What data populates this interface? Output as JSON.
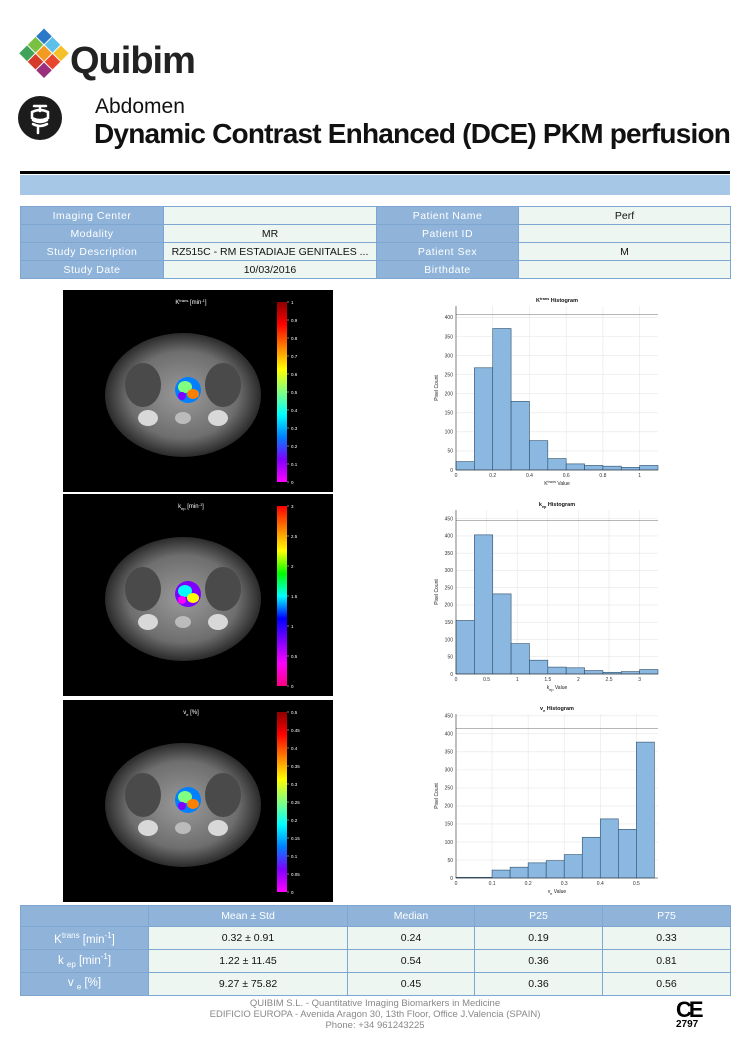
{
  "brand": {
    "name": "Quibim"
  },
  "report": {
    "category": "Abdomen",
    "title": "Dynamic Contrast Enhanced (DCE) PKM perfusion"
  },
  "info": {
    "rows": [
      {
        "l1": "Imaging Center",
        "v1": "",
        "l2": "Patient Name",
        "v2": "Perf"
      },
      {
        "l1": "Modality",
        "v1": "MR",
        "l2": "Patient ID",
        "v2": ""
      },
      {
        "l1": "Study Description",
        "v1": "RZ515C - RM ESTADIAJE GENITALES ...",
        "l2": "Patient Sex",
        "v2": "M"
      },
      {
        "l1": "Study Date",
        "v1": "10/03/2016",
        "l2": "Birthdate",
        "v2": ""
      }
    ]
  },
  "maps": [
    {
      "title_main": "K",
      "title_sup": "trans",
      "title_unit": " [min",
      "title_unit_sup": "-1",
      "title_end": "]",
      "scale": [
        "1",
        "0.9",
        "0.8",
        "0.7",
        "0.6",
        "0.5",
        "0.4",
        "0.3",
        "0.2",
        "0.1",
        "0"
      ],
      "colormap": "jet"
    },
    {
      "title_main": "k",
      "title_sub": "ep",
      "title_unit": " [min",
      "title_unit_sup": "-1",
      "title_end": "]",
      "scale": [
        "3",
        "2.5",
        "2",
        "1.5",
        "1",
        "0.5",
        "0"
      ],
      "colormap": "hsv"
    },
    {
      "title_main": "v",
      "title_sub": "e",
      "title_unit": " [%]",
      "title_end": "",
      "scale": [
        "0.5",
        "0.45",
        "0.4",
        "0.35",
        "0.3",
        "0.25",
        "0.2",
        "0.15",
        "0.1",
        "0.05",
        "0"
      ],
      "colormap": "jet"
    }
  ],
  "chart_data": [
    {
      "type": "bar",
      "title": "Ktrans Histogram",
      "xlabel": "Ktrans Value",
      "ylabel": "Pixel Count",
      "bin_edges": [
        0,
        0.1,
        0.2,
        0.3,
        0.4,
        0.5,
        0.6,
        0.7,
        0.8,
        0.9,
        1.0,
        1.1
      ],
      "values": [
        22,
        268,
        371,
        180,
        77,
        30,
        16,
        12,
        10,
        7,
        12
      ],
      "xticks": [
        "0",
        "0.2",
        "0.4",
        "0.6",
        "0.8",
        "1"
      ],
      "yticks": [
        "0",
        "50",
        "100",
        "150",
        "200",
        "250",
        "300",
        "350",
        "400"
      ],
      "xlim": [
        0,
        1.1
      ],
      "ylim": [
        0,
        430
      ],
      "ref_line": 408
    },
    {
      "type": "bar",
      "title": "kep Histogram",
      "xlabel": "kep Value",
      "ylabel": "Pixel Count",
      "bin_edges": [
        0,
        0.3,
        0.6,
        0.9,
        1.2,
        1.5,
        1.8,
        2.1,
        2.4,
        2.7,
        3.0,
        3.3
      ],
      "values": [
        155,
        403,
        232,
        88,
        40,
        20,
        18,
        10,
        5,
        7,
        13
      ],
      "xticks": [
        "0",
        "0.5",
        "1",
        "1.5",
        "2",
        "2.5",
        "3"
      ],
      "yticks": [
        "0",
        "50",
        "100",
        "150",
        "200",
        "250",
        "300",
        "350",
        "400",
        "450"
      ],
      "xlim": [
        0,
        3.3
      ],
      "ylim": [
        0,
        475
      ],
      "ref_line": 445
    },
    {
      "type": "bar",
      "title": "ve Histogram",
      "xlabel": "ve Value",
      "ylabel": "Pixel Count",
      "bin_edges": [
        0,
        0.05,
        0.1,
        0.15,
        0.2,
        0.25,
        0.3,
        0.35,
        0.4,
        0.45,
        0.5,
        0.55
      ],
      "values": [
        2,
        2,
        22,
        30,
        42,
        48,
        65,
        113,
        164,
        135,
        377
      ],
      "xticks": [
        "0",
        "0.1",
        "0.2",
        "0.3",
        "0.4",
        "0.5"
      ],
      "yticks": [
        "0",
        "50",
        "100",
        "150",
        "200",
        "250",
        "300",
        "350",
        "400",
        "450"
      ],
      "xlim": [
        0,
        0.56
      ],
      "ylim": [
        0,
        455
      ],
      "ref_line": 415
    }
  ],
  "stats": {
    "headers": [
      "",
      "Mean ± Std",
      "Median",
      "P25",
      "P75"
    ],
    "rows": [
      {
        "label_main": "K",
        "label_sup": "trans",
        "label_unit": " [min",
        "label_unit_sup": "-1",
        "label_end": "]",
        "mean_std": "0.32 ± 0.91",
        "median": "0.24",
        "p25": "0.19",
        "p75": "0.33"
      },
      {
        "label_main": "k ",
        "label_sub": "ep",
        "label_unit": " [min",
        "label_unit_sup": "-1",
        "label_end": "]",
        "mean_std": "1.22 ± 11.45",
        "median": "0.54",
        "p25": "0.36",
        "p75": "0.81"
      },
      {
        "label_main": "v ",
        "label_sub": "e",
        "label_unit": " [%]",
        "label_end": "",
        "mean_std": "9.27 ± 75.82",
        "median": "0.45",
        "p25": "0.36",
        "p75": "0.56"
      }
    ]
  },
  "footer": {
    "line1": "QUIBIM S.L. - Quantitative Imaging Biomarkers in Medicine",
    "line2": "EDIFICIO EUROPA - Avenida Aragon 30, 13th Floor, Office J.Valencia (SPAIN)",
    "line3": "Phone: +34 961243225"
  },
  "ce": {
    "mark": "CE",
    "number": "2797"
  }
}
